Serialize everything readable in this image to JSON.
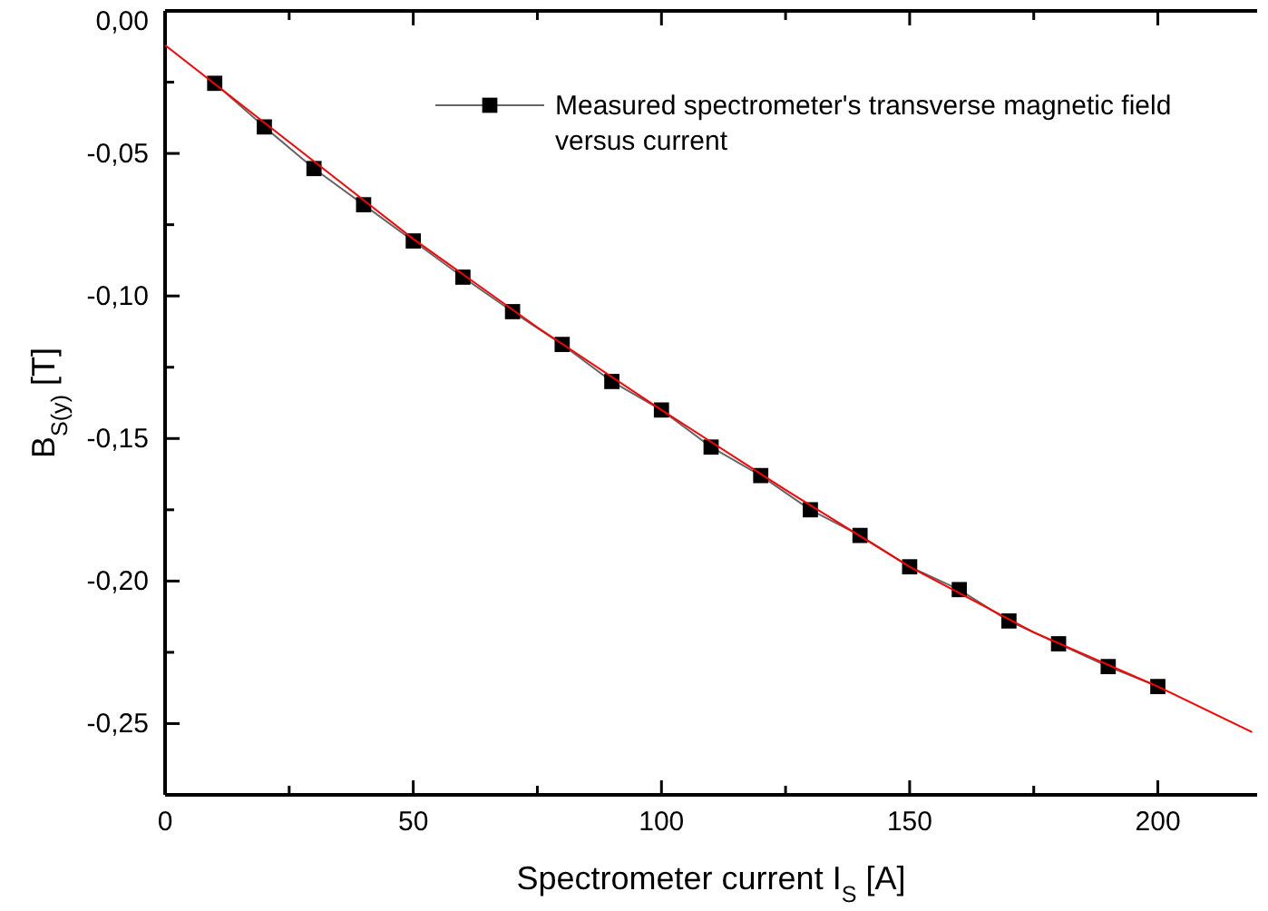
{
  "chart_data": {
    "type": "line",
    "xlabel": "Spectrometer current I$_{S}$ [A]",
    "ylabel": "B$_{S(y)}$ [T]",
    "xlim": [
      0,
      220
    ],
    "ylim": [
      -0.275,
      0
    ],
    "xticks": [
      0,
      {
        "value": 25,
        "label": null
      },
      50,
      {
        "value": 75,
        "label": null
      },
      100,
      {
        "value": 125,
        "label": null
      },
      150,
      {
        "value": 175,
        "label": null
      },
      200
    ],
    "yticks": [
      {
        "value": 0,
        "label": "0,00"
      },
      {
        "value": -0.025,
        "label": null
      },
      {
        "value": -0.05,
        "label": "-0,05"
      },
      {
        "value": -0.075,
        "label": null
      },
      {
        "value": -0.1,
        "label": "-0,10"
      },
      {
        "value": -0.125,
        "label": null
      },
      {
        "value": -0.15,
        "label": "-0,15"
      },
      {
        "value": -0.175,
        "label": null
      },
      {
        "value": -0.2,
        "label": "-0,20"
      },
      {
        "value": -0.225,
        "label": null
      },
      {
        "value": -0.25,
        "label": "-0,25"
      }
    ],
    "grid": false,
    "legend": "top right",
    "marker": "square",
    "line_style": "solid",
    "series": [
      {
        "name": "Measured spectrometer's transverse magnetic field versus current",
        "color": "#000000",
        "x": [
          10,
          20,
          30,
          40,
          50,
          60,
          70,
          80,
          90,
          100,
          110,
          120,
          130,
          140,
          150,
          160,
          170,
          180,
          190,
          200
        ],
        "values": [
          -0.0254,
          -0.0407,
          -0.0553,
          -0.068,
          -0.0807,
          -0.0934,
          -0.1055,
          -0.117,
          -0.13,
          -0.14,
          -0.153,
          -0.163,
          -0.175,
          -0.184,
          -0.195,
          -0.203,
          -0.214,
          -0.222,
          -0.23,
          -0.237
        ]
      },
      {
        "color": "#ff0000",
        "marker": "none",
        "x": [
          0,
          25,
          50,
          75,
          100,
          125,
          150,
          175,
          200,
          219
        ],
        "values": [
          -0.012,
          -0.046,
          -0.08,
          -0.111,
          -0.14,
          -0.168,
          -0.195,
          -0.218,
          -0.237,
          -0.253
        ]
      }
    ]
  }
}
